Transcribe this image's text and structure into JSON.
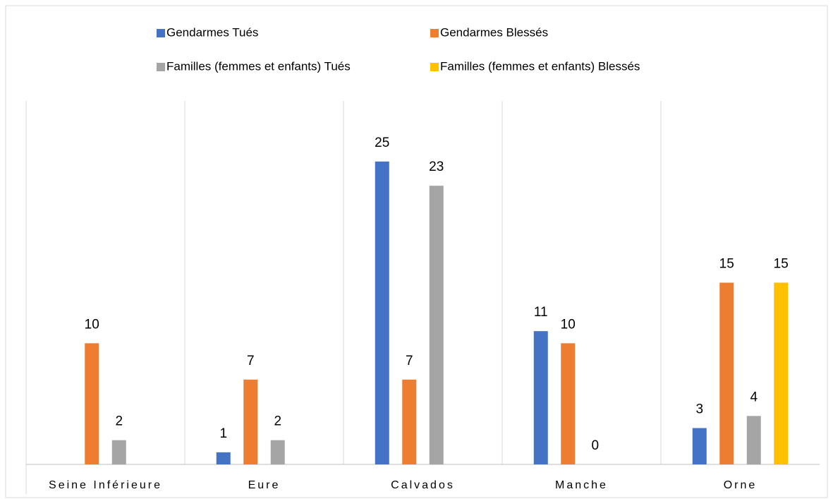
{
  "chart_data": {
    "type": "bar",
    "categories": [
      "Seine Inférieure",
      "Eure",
      "Calvados",
      "Manche",
      "Orne"
    ],
    "series": [
      {
        "name": "Gendarmes Tués",
        "color": "#4472c4",
        "values": [
          null,
          1,
          25,
          11,
          3
        ]
      },
      {
        "name": "Gendarmes Blessés",
        "color": "#ed7d31",
        "values": [
          10,
          7,
          7,
          10,
          15
        ]
      },
      {
        "name": "Familles (femmes et enfants) Tués",
        "color": "#a5a5a5",
        "values": [
          2,
          2,
          23,
          0,
          4
        ]
      },
      {
        "name": "Familles (femmes et enfants) Blessés",
        "color": "#ffc000",
        "values": [
          null,
          null,
          null,
          null,
          15
        ]
      }
    ],
    "ylim": [
      0,
      30
    ],
    "legend": "top"
  }
}
